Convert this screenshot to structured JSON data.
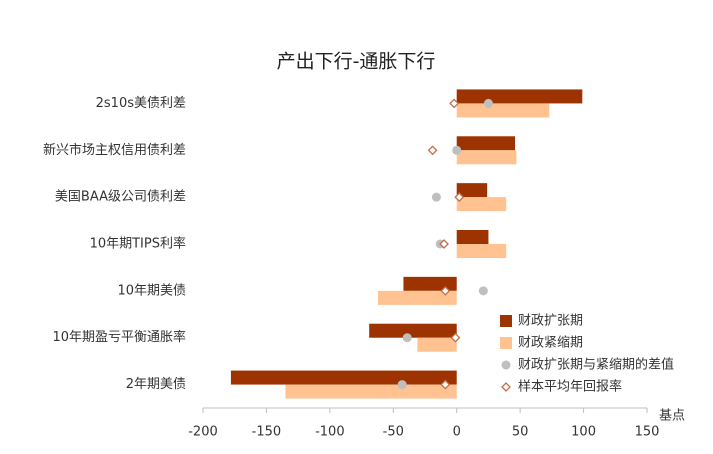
{
  "chart_data": {
    "type": "bar",
    "orientation": "horizontal",
    "title": "产出下行-通胀下行",
    "x_label": "基点",
    "categories": [
      "2s10s美债利差",
      "新兴市场主权信用债利差",
      "美国BAA级公司债利差",
      "10年期TIPS利率",
      "10年期美债",
      "10年期盈亏平衡通胀率",
      "2年期美债"
    ],
    "series": [
      {
        "name": "财政扩张期",
        "kind": "bar",
        "color": "#9c3300",
        "values": [
          99,
          46,
          24,
          25,
          -42,
          -69,
          -178
        ]
      },
      {
        "name": "财政紧缩期",
        "kind": "bar",
        "color": "#ffc290",
        "values": [
          73,
          47,
          39,
          39,
          -62,
          -31,
          -135
        ]
      },
      {
        "name": "财政扩张期与紧缩期的差值",
        "kind": "scatter",
        "marker": "circle",
        "color": "#bfbfbf",
        "values": [
          25,
          0,
          -16,
          -13,
          21,
          -39,
          -43
        ]
      },
      {
        "name": "样本平均年回报率",
        "kind": "scatter",
        "marker": "diamond",
        "color": "#c0704a",
        "values": [
          -2,
          -19,
          2,
          -10,
          -9,
          -1,
          -9
        ]
      }
    ],
    "xlim": [
      -200,
      150
    ],
    "xticks": [
      -200,
      -150,
      -100,
      -50,
      0,
      50,
      100,
      150
    ],
    "grid": false
  }
}
